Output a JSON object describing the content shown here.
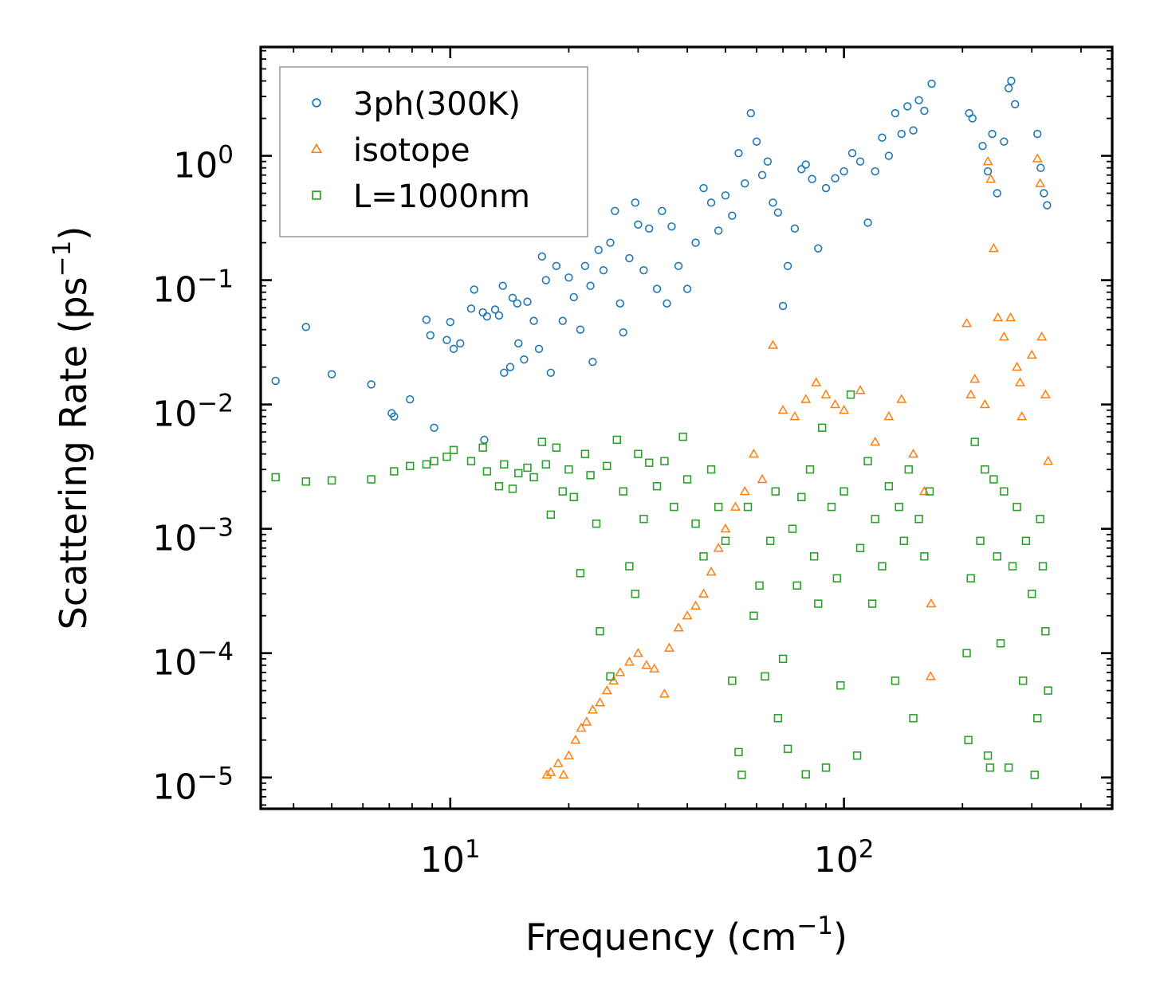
{
  "chart_data": {
    "type": "scatter",
    "xscale": "log",
    "yscale": "log",
    "xlim": [
      3.3,
      480
    ],
    "ylim": [
      5.6e-06,
      7.5
    ],
    "xlabel": {
      "main": "Frequency (cm",
      "sup": "−1",
      "close": ")"
    },
    "ylabel": {
      "main": "Scattering Rate (ps",
      "sup": "−1",
      "close": ")"
    },
    "xticks": [
      {
        "value": 10,
        "base": "10",
        "exp": "1"
      },
      {
        "value": 100,
        "base": "10",
        "exp": "2"
      }
    ],
    "yticks": [
      {
        "value": 1e-05,
        "base": "10",
        "exp": "−5"
      },
      {
        "value": 0.0001,
        "base": "10",
        "exp": "−4"
      },
      {
        "value": 0.001,
        "base": "10",
        "exp": "−3"
      },
      {
        "value": 0.01,
        "base": "10",
        "exp": "−2"
      },
      {
        "value": 0.1,
        "base": "10",
        "exp": "−1"
      },
      {
        "value": 1,
        "base": "10",
        "exp": "0"
      }
    ],
    "legend": {
      "position": "top-left"
    },
    "series": [
      {
        "name": "3ph(300K)",
        "marker": "circle",
        "color": "#1f77b4",
        "points": [
          [
            3.6,
            0.0155
          ],
          [
            4.3,
            0.042
          ],
          [
            5.0,
            0.0175
          ],
          [
            6.3,
            0.0145
          ],
          [
            7.1,
            0.0085
          ],
          [
            7.2,
            0.008
          ],
          [
            7.9,
            0.011
          ],
          [
            8.7,
            0.048
          ],
          [
            8.9,
            0.036
          ],
          [
            9.1,
            0.0065
          ],
          [
            9.8,
            0.033
          ],
          [
            10.0,
            0.046
          ],
          [
            10.2,
            0.028
          ],
          [
            10.6,
            0.031
          ],
          [
            11.3,
            0.059
          ],
          [
            11.5,
            0.084
          ],
          [
            12.1,
            0.055
          ],
          [
            12.2,
            0.0052
          ],
          [
            12.4,
            0.051
          ],
          [
            13.0,
            0.058
          ],
          [
            13.3,
            0.052
          ],
          [
            13.6,
            0.09
          ],
          [
            13.7,
            0.018
          ],
          [
            14.2,
            0.02
          ],
          [
            14.4,
            0.072
          ],
          [
            14.8,
            0.065
          ],
          [
            14.9,
            0.031
          ],
          [
            15.4,
            0.023
          ],
          [
            15.7,
            0.067
          ],
          [
            16.3,
            0.047
          ],
          [
            16.8,
            0.028
          ],
          [
            17.1,
            0.155
          ],
          [
            17.5,
            0.1
          ],
          [
            18.0,
            0.018
          ],
          [
            18.6,
            0.13
          ],
          [
            19.3,
            0.047
          ],
          [
            20.0,
            0.105
          ],
          [
            20.6,
            0.073
          ],
          [
            21.4,
            0.04
          ],
          [
            22.0,
            0.13
          ],
          [
            22.7,
            0.09
          ],
          [
            23.0,
            0.022
          ],
          [
            23.8,
            0.175
          ],
          [
            24.5,
            0.12
          ],
          [
            25.5,
            0.2
          ],
          [
            26.2,
            0.36
          ],
          [
            27.0,
            0.065
          ],
          [
            27.5,
            0.038
          ],
          [
            28.5,
            0.15
          ],
          [
            29.5,
            0.42
          ],
          [
            30.0,
            0.28
          ],
          [
            31.0,
            0.12
          ],
          [
            32.0,
            0.26
          ],
          [
            33.5,
            0.085
          ],
          [
            34.5,
            0.36
          ],
          [
            35.5,
            0.065
          ],
          [
            36.5,
            0.27
          ],
          [
            38.0,
            0.13
          ],
          [
            40.0,
            0.085
          ],
          [
            42.0,
            0.2
          ],
          [
            44.0,
            0.55
          ],
          [
            46.0,
            0.42
          ],
          [
            48.0,
            0.25
          ],
          [
            50.0,
            0.48
          ],
          [
            52.0,
            0.33
          ],
          [
            54.0,
            1.05
          ],
          [
            56.0,
            0.6
          ],
          [
            58.0,
            2.2
          ],
          [
            60.0,
            1.3
          ],
          [
            62.0,
            0.7
          ],
          [
            64.0,
            0.9
          ],
          [
            66.0,
            0.42
          ],
          [
            68.0,
            0.35
          ],
          [
            70.0,
            0.062
          ],
          [
            72.0,
            0.13
          ],
          [
            75.0,
            0.26
          ],
          [
            78.0,
            0.78
          ],
          [
            80.0,
            0.85
          ],
          [
            83.0,
            0.65
          ],
          [
            86.0,
            0.18
          ],
          [
            90.0,
            0.55
          ],
          [
            95.0,
            0.66
          ],
          [
            100.0,
            0.75
          ],
          [
            105.0,
            1.05
          ],
          [
            110.0,
            0.9
          ],
          [
            115.0,
            0.29
          ],
          [
            120.0,
            0.75
          ],
          [
            125.0,
            1.4
          ],
          [
            130.0,
            1.0
          ],
          [
            135.0,
            2.2
          ],
          [
            140.0,
            1.5
          ],
          [
            145.0,
            2.5
          ],
          [
            150.0,
            1.6
          ],
          [
            155.0,
            2.8
          ],
          [
            160.0,
            2.3
          ],
          [
            167.0,
            3.8
          ],
          [
            208.0,
            2.2
          ],
          [
            212.0,
            2.0
          ],
          [
            225.0,
            1.2
          ],
          [
            232.0,
            0.75
          ],
          [
            238.0,
            1.5
          ],
          [
            245.0,
            0.5
          ],
          [
            255.0,
            1.3
          ],
          [
            262.0,
            3.5
          ],
          [
            266.0,
            4.0
          ],
          [
            272.0,
            2.6
          ],
          [
            310.0,
            1.5
          ],
          [
            316.0,
            0.8
          ],
          [
            322.0,
            0.5
          ],
          [
            328.0,
            0.4
          ]
        ]
      },
      {
        "name": "isotope",
        "marker": "triangle",
        "color": "#ff7f0e",
        "points": [
          [
            17.6,
            1.05e-05
          ],
          [
            18.0,
            1.1e-05
          ],
          [
            18.8,
            1.3e-05
          ],
          [
            19.4,
            1.05e-05
          ],
          [
            20.0,
            1.5e-05
          ],
          [
            20.8,
            2e-05
          ],
          [
            21.5,
            2.5e-05
          ],
          [
            22.2,
            2.8e-05
          ],
          [
            23.0,
            3.5e-05
          ],
          [
            24.0,
            4e-05
          ],
          [
            25.0,
            5e-05
          ],
          [
            26.0,
            6e-05
          ],
          [
            27.0,
            7e-05
          ],
          [
            28.5,
            8.5e-05
          ],
          [
            30.0,
            0.0001
          ],
          [
            31.5,
            8e-05
          ],
          [
            33.0,
            7.5e-05
          ],
          [
            35.0,
            4.7e-05
          ],
          [
            36.0,
            0.00011
          ],
          [
            38.0,
            0.00016
          ],
          [
            40.0,
            0.0002
          ],
          [
            42.0,
            0.00024
          ],
          [
            44.0,
            0.0003
          ],
          [
            46.0,
            0.00045
          ],
          [
            48.0,
            0.0007
          ],
          [
            50.0,
            0.001
          ],
          [
            53.0,
            0.0015
          ],
          [
            56.0,
            0.002
          ],
          [
            59.0,
            0.004
          ],
          [
            62.0,
            0.0025
          ],
          [
            66.0,
            0.03
          ],
          [
            70.0,
            0.009
          ],
          [
            75.0,
            0.008
          ],
          [
            80.0,
            0.011
          ],
          [
            85.0,
            0.015
          ],
          [
            90.0,
            0.012
          ],
          [
            95.0,
            0.01
          ],
          [
            100.0,
            0.009
          ],
          [
            110.0,
            0.013
          ],
          [
            120.0,
            0.005
          ],
          [
            130.0,
            0.008
          ],
          [
            140.0,
            0.011
          ],
          [
            150.0,
            0.004
          ],
          [
            160.0,
            0.002
          ],
          [
            166.0,
            6.5e-05
          ],
          [
            166.5,
            0.00025
          ],
          [
            205.0,
            0.045
          ],
          [
            210.0,
            0.012
          ],
          [
            215.0,
            0.016
          ],
          [
            232.0,
            0.9
          ],
          [
            236.0,
            0.65
          ],
          [
            240.0,
            0.18
          ],
          [
            246.0,
            0.05
          ],
          [
            255.0,
            0.035
          ],
          [
            265.0,
            0.05
          ],
          [
            275.0,
            0.02
          ],
          [
            283.0,
            0.008
          ],
          [
            310.0,
            0.95
          ],
          [
            315.0,
            0.6
          ],
          [
            318.0,
            0.035
          ],
          [
            325.0,
            0.012
          ],
          [
            330.0,
            0.0035
          ],
          [
            280.0,
            0.015
          ],
          [
            228.0,
            0.01
          ],
          [
            300.0,
            0.025
          ]
        ]
      },
      {
        "name": "L=1000nm",
        "marker": "square",
        "color": "#2ca02c",
        "points": [
          [
            3.6,
            0.0026
          ],
          [
            4.3,
            0.0024
          ],
          [
            5.0,
            0.00245
          ],
          [
            6.3,
            0.0025
          ],
          [
            7.2,
            0.0029
          ],
          [
            7.9,
            0.0032
          ],
          [
            8.7,
            0.0033
          ],
          [
            9.1,
            0.0035
          ],
          [
            9.8,
            0.0038
          ],
          [
            10.2,
            0.0043
          ],
          [
            11.3,
            0.0035
          ],
          [
            12.1,
            0.0045
          ],
          [
            12.4,
            0.0029
          ],
          [
            13.3,
            0.0022
          ],
          [
            13.7,
            0.0033
          ],
          [
            14.4,
            0.0021
          ],
          [
            14.9,
            0.0028
          ],
          [
            15.7,
            0.0031
          ],
          [
            16.3,
            0.0026
          ],
          [
            17.1,
            0.005
          ],
          [
            17.5,
            0.0033
          ],
          [
            18.0,
            0.0013
          ],
          [
            18.6,
            0.0045
          ],
          [
            19.3,
            0.002
          ],
          [
            20.0,
            0.003
          ],
          [
            20.6,
            0.0018
          ],
          [
            21.4,
            0.00044
          ],
          [
            22.0,
            0.004
          ],
          [
            22.7,
            0.0027
          ],
          [
            23.5,
            0.0011
          ],
          [
            24.0,
            0.00015
          ],
          [
            25.0,
            0.0032
          ],
          [
            25.5,
            6.5e-05
          ],
          [
            26.5,
            0.0052
          ],
          [
            27.5,
            0.002
          ],
          [
            28.5,
            0.0005
          ],
          [
            29.5,
            0.0003
          ],
          [
            30.0,
            0.004
          ],
          [
            31.0,
            0.0012
          ],
          [
            32.0,
            0.0034
          ],
          [
            33.5,
            0.0022
          ],
          [
            35.0,
            0.0035
          ],
          [
            37.0,
            0.0015
          ],
          [
            39.0,
            0.0055
          ],
          [
            40.0,
            0.0025
          ],
          [
            42.0,
            0.0011
          ],
          [
            44.0,
            0.0006
          ],
          [
            46.0,
            0.003
          ],
          [
            48.0,
            0.0015
          ],
          [
            50.0,
            0.0008
          ],
          [
            52.0,
            6e-05
          ],
          [
            54.0,
            1.6e-05
          ],
          [
            55.0,
            1.05e-05
          ],
          [
            57.0,
            0.0015
          ],
          [
            59.0,
            0.0002
          ],
          [
            61.0,
            0.00035
          ],
          [
            63.0,
            6.5e-05
          ],
          [
            65.0,
            0.0008
          ],
          [
            67.0,
            0.002
          ],
          [
            68.0,
            3e-05
          ],
          [
            70.0,
            9e-05
          ],
          [
            72.0,
            1.7e-05
          ],
          [
            74.0,
            0.001
          ],
          [
            76.0,
            0.00035
          ],
          [
            78.0,
            0.0018
          ],
          [
            80.0,
            1.06e-05
          ],
          [
            82.0,
            0.003
          ],
          [
            84.0,
            0.0006
          ],
          [
            86.0,
            0.00025
          ],
          [
            88.0,
            0.0065
          ],
          [
            90.0,
            1.2e-05
          ],
          [
            93.0,
            0.0015
          ],
          [
            96.0,
            0.0004
          ],
          [
            98.0,
            5.5e-05
          ],
          [
            100.0,
            0.002
          ],
          [
            104.0,
            0.012
          ],
          [
            108.0,
            1.5e-05
          ],
          [
            110.0,
            0.0007
          ],
          [
            115.0,
            0.0035
          ],
          [
            118.0,
            0.00025
          ],
          [
            120.0,
            0.0012
          ],
          [
            125.0,
            0.0005
          ],
          [
            130.0,
            0.0022
          ],
          [
            135.0,
            6e-05
          ],
          [
            138.0,
            0.0015
          ],
          [
            142.0,
            0.0008
          ],
          [
            146.0,
            0.003
          ],
          [
            150.0,
            3e-05
          ],
          [
            155.0,
            0.0012
          ],
          [
            160.0,
            0.0006
          ],
          [
            165.0,
            0.002
          ],
          [
            205.0,
            0.0001
          ],
          [
            207.0,
            2e-05
          ],
          [
            210.0,
            0.0004
          ],
          [
            215.0,
            0.005
          ],
          [
            222.0,
            0.0008
          ],
          [
            228.0,
            0.003
          ],
          [
            232.0,
            1.5e-05
          ],
          [
            235.0,
            1.2e-05
          ],
          [
            240.0,
            0.0025
          ],
          [
            245.0,
            0.0006
          ],
          [
            250.0,
            0.00012
          ],
          [
            255.0,
            0.002
          ],
          [
            262.0,
            1.2e-05
          ],
          [
            268.0,
            0.0005
          ],
          [
            275.0,
            0.0015
          ],
          [
            285.0,
            6e-05
          ],
          [
            305.0,
            1.05e-05
          ],
          [
            310.0,
            3e-05
          ],
          [
            315.0,
            0.0012
          ],
          [
            320.0,
            0.0005
          ],
          [
            325.0,
            0.00015
          ],
          [
            330.0,
            5e-05
          ],
          [
            300.0,
            0.0003
          ],
          [
            290.0,
            0.0008
          ]
        ]
      }
    ]
  }
}
